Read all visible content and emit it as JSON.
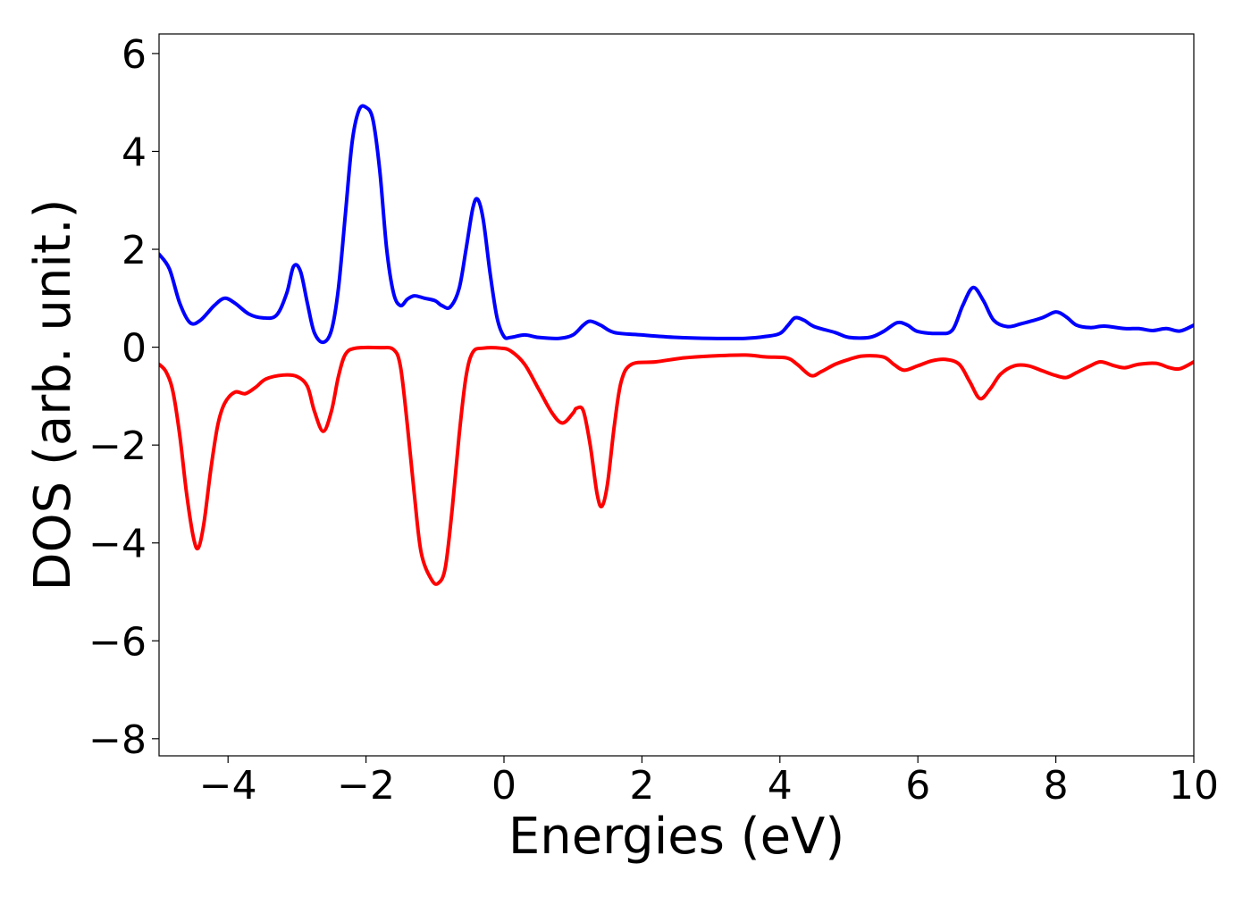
{
  "chart_data": {
    "type": "line",
    "title": "",
    "xlabel": "Energies (eV)",
    "ylabel": "DOS (arb. unit.)",
    "xlim": [
      -5,
      10
    ],
    "ylim": [
      -8.35,
      6.4
    ],
    "grid": false,
    "legend": "none",
    "x_ticks": [
      -4,
      -2,
      0,
      2,
      4,
      6,
      8,
      10
    ],
    "x_tick_labels": [
      "−4",
      "−2",
      "0",
      "2",
      "4",
      "6",
      "8",
      "10"
    ],
    "y_ticks": [
      6,
      4,
      2,
      0,
      -2,
      -4,
      -6,
      -8
    ],
    "y_tick_labels": [
      "6",
      "4",
      "2",
      "0",
      "−2",
      "−4",
      "−6",
      "−8"
    ],
    "series": [
      {
        "color": "#0000ff",
        "points": [
          [
            -5.0,
            1.9
          ],
          [
            -4.85,
            1.6
          ],
          [
            -4.7,
            0.9
          ],
          [
            -4.55,
            0.5
          ],
          [
            -4.4,
            0.55
          ],
          [
            -4.2,
            0.85
          ],
          [
            -4.05,
            1.0
          ],
          [
            -3.9,
            0.9
          ],
          [
            -3.7,
            0.68
          ],
          [
            -3.5,
            0.6
          ],
          [
            -3.3,
            0.65
          ],
          [
            -3.15,
            1.1
          ],
          [
            -3.05,
            1.65
          ],
          [
            -2.95,
            1.55
          ],
          [
            -2.85,
            0.9
          ],
          [
            -2.75,
            0.3
          ],
          [
            -2.62,
            0.1
          ],
          [
            -2.5,
            0.35
          ],
          [
            -2.4,
            1.2
          ],
          [
            -2.3,
            2.7
          ],
          [
            -2.2,
            4.2
          ],
          [
            -2.1,
            4.85
          ],
          [
            -2.0,
            4.9
          ],
          [
            -1.9,
            4.65
          ],
          [
            -1.8,
            3.6
          ],
          [
            -1.7,
            2.0
          ],
          [
            -1.6,
            1.1
          ],
          [
            -1.5,
            0.85
          ],
          [
            -1.4,
            0.98
          ],
          [
            -1.3,
            1.05
          ],
          [
            -1.15,
            1.0
          ],
          [
            -1.0,
            0.95
          ],
          [
            -0.9,
            0.85
          ],
          [
            -0.78,
            0.82
          ],
          [
            -0.65,
            1.2
          ],
          [
            -0.55,
            2.0
          ],
          [
            -0.45,
            2.85
          ],
          [
            -0.38,
            3.02
          ],
          [
            -0.3,
            2.6
          ],
          [
            -0.2,
            1.5
          ],
          [
            -0.1,
            0.6
          ],
          [
            0.0,
            0.22
          ],
          [
            0.1,
            0.2
          ],
          [
            0.3,
            0.25
          ],
          [
            0.5,
            0.2
          ],
          [
            0.8,
            0.18
          ],
          [
            1.0,
            0.25
          ],
          [
            1.15,
            0.45
          ],
          [
            1.25,
            0.53
          ],
          [
            1.4,
            0.45
          ],
          [
            1.6,
            0.3
          ],
          [
            2.0,
            0.25
          ],
          [
            2.5,
            0.2
          ],
          [
            3.0,
            0.18
          ],
          [
            3.5,
            0.18
          ],
          [
            3.8,
            0.22
          ],
          [
            4.0,
            0.28
          ],
          [
            4.12,
            0.45
          ],
          [
            4.22,
            0.6
          ],
          [
            4.35,
            0.55
          ],
          [
            4.5,
            0.42
          ],
          [
            4.8,
            0.3
          ],
          [
            5.0,
            0.2
          ],
          [
            5.3,
            0.2
          ],
          [
            5.5,
            0.32
          ],
          [
            5.7,
            0.5
          ],
          [
            5.85,
            0.45
          ],
          [
            6.0,
            0.32
          ],
          [
            6.3,
            0.28
          ],
          [
            6.5,
            0.35
          ],
          [
            6.65,
            0.85
          ],
          [
            6.8,
            1.22
          ],
          [
            6.95,
            0.95
          ],
          [
            7.1,
            0.55
          ],
          [
            7.3,
            0.42
          ],
          [
            7.5,
            0.48
          ],
          [
            7.8,
            0.6
          ],
          [
            8.0,
            0.72
          ],
          [
            8.15,
            0.62
          ],
          [
            8.3,
            0.45
          ],
          [
            8.5,
            0.4
          ],
          [
            8.7,
            0.43
          ],
          [
            9.0,
            0.38
          ],
          [
            9.2,
            0.38
          ],
          [
            9.4,
            0.34
          ],
          [
            9.6,
            0.38
          ],
          [
            9.8,
            0.33
          ],
          [
            10.0,
            0.45
          ]
        ]
      },
      {
        "color": "#ff0000",
        "points": [
          [
            -5.0,
            -0.35
          ],
          [
            -4.9,
            -0.5
          ],
          [
            -4.8,
            -0.9
          ],
          [
            -4.7,
            -1.8
          ],
          [
            -4.6,
            -3.0
          ],
          [
            -4.5,
            -3.9
          ],
          [
            -4.43,
            -4.1
          ],
          [
            -4.35,
            -3.6
          ],
          [
            -4.25,
            -2.5
          ],
          [
            -4.15,
            -1.6
          ],
          [
            -4.05,
            -1.15
          ],
          [
            -3.9,
            -0.92
          ],
          [
            -3.75,
            -0.95
          ],
          [
            -3.6,
            -0.82
          ],
          [
            -3.45,
            -0.65
          ],
          [
            -3.2,
            -0.57
          ],
          [
            -3.0,
            -0.6
          ],
          [
            -2.85,
            -0.8
          ],
          [
            -2.75,
            -1.3
          ],
          [
            -2.62,
            -1.72
          ],
          [
            -2.5,
            -1.3
          ],
          [
            -2.4,
            -0.6
          ],
          [
            -2.3,
            -0.15
          ],
          [
            -2.15,
            -0.02
          ],
          [
            -1.8,
            -0.01
          ],
          [
            -1.6,
            -0.05
          ],
          [
            -1.5,
            -0.4
          ],
          [
            -1.4,
            -1.6
          ],
          [
            -1.3,
            -3.0
          ],
          [
            -1.2,
            -4.2
          ],
          [
            -1.05,
            -4.75
          ],
          [
            -0.95,
            -4.82
          ],
          [
            -0.85,
            -4.5
          ],
          [
            -0.75,
            -3.3
          ],
          [
            -0.65,
            -1.8
          ],
          [
            -0.55,
            -0.6
          ],
          [
            -0.45,
            -0.1
          ],
          [
            -0.3,
            -0.02
          ],
          [
            -0.05,
            -0.02
          ],
          [
            0.1,
            -0.08
          ],
          [
            0.3,
            -0.35
          ],
          [
            0.5,
            -0.85
          ],
          [
            0.7,
            -1.35
          ],
          [
            0.85,
            -1.55
          ],
          [
            1.0,
            -1.35
          ],
          [
            1.05,
            -1.25
          ],
          [
            1.15,
            -1.3
          ],
          [
            1.25,
            -2.0
          ],
          [
            1.35,
            -3.0
          ],
          [
            1.42,
            -3.25
          ],
          [
            1.5,
            -2.8
          ],
          [
            1.6,
            -1.6
          ],
          [
            1.7,
            -0.7
          ],
          [
            1.85,
            -0.35
          ],
          [
            2.2,
            -0.3
          ],
          [
            2.6,
            -0.22
          ],
          [
            3.0,
            -0.18
          ],
          [
            3.5,
            -0.16
          ],
          [
            3.8,
            -0.2
          ],
          [
            4.1,
            -0.22
          ],
          [
            4.25,
            -0.35
          ],
          [
            4.45,
            -0.58
          ],
          [
            4.6,
            -0.5
          ],
          [
            4.8,
            -0.35
          ],
          [
            5.0,
            -0.25
          ],
          [
            5.2,
            -0.18
          ],
          [
            5.5,
            -0.2
          ],
          [
            5.65,
            -0.35
          ],
          [
            5.8,
            -0.47
          ],
          [
            6.0,
            -0.38
          ],
          [
            6.2,
            -0.28
          ],
          [
            6.4,
            -0.25
          ],
          [
            6.6,
            -0.35
          ],
          [
            6.75,
            -0.7
          ],
          [
            6.9,
            -1.05
          ],
          [
            7.05,
            -0.85
          ],
          [
            7.2,
            -0.55
          ],
          [
            7.4,
            -0.38
          ],
          [
            7.6,
            -0.38
          ],
          [
            7.8,
            -0.48
          ],
          [
            8.0,
            -0.58
          ],
          [
            8.15,
            -0.62
          ],
          [
            8.3,
            -0.52
          ],
          [
            8.5,
            -0.38
          ],
          [
            8.65,
            -0.3
          ],
          [
            8.85,
            -0.38
          ],
          [
            9.0,
            -0.42
          ],
          [
            9.2,
            -0.35
          ],
          [
            9.45,
            -0.33
          ],
          [
            9.65,
            -0.42
          ],
          [
            9.8,
            -0.44
          ],
          [
            10.0,
            -0.3
          ]
        ]
      }
    ]
  }
}
